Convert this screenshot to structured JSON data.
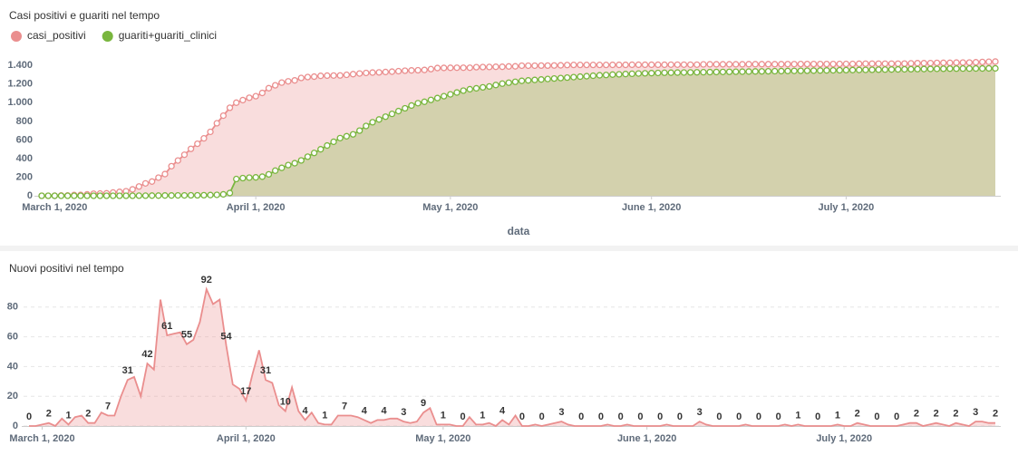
{
  "chart_data": [
    {
      "type": "area",
      "title": "Casi positivi e guariti nel tempo",
      "x_label": "data",
      "legend": "top-left",
      "markers": true,
      "grid": false,
      "x": [
        "2020-02-28",
        "2020-02-29",
        "2020-03-01",
        "2020-03-02",
        "2020-03-03",
        "2020-03-04",
        "2020-03-05",
        "2020-03-06",
        "2020-03-07",
        "2020-03-08",
        "2020-03-09",
        "2020-03-10",
        "2020-03-11",
        "2020-03-12",
        "2020-03-13",
        "2020-03-14",
        "2020-03-15",
        "2020-03-16",
        "2020-03-17",
        "2020-03-18",
        "2020-03-19",
        "2020-03-20",
        "2020-03-21",
        "2020-03-22",
        "2020-03-23",
        "2020-03-24",
        "2020-03-25",
        "2020-03-26",
        "2020-03-27",
        "2020-03-28",
        "2020-03-29",
        "2020-03-30",
        "2020-03-31",
        "2020-04-01",
        "2020-04-02",
        "2020-04-03",
        "2020-04-04",
        "2020-04-05",
        "2020-04-06",
        "2020-04-07",
        "2020-04-08",
        "2020-04-09",
        "2020-04-10",
        "2020-04-11",
        "2020-04-12",
        "2020-04-13",
        "2020-04-14",
        "2020-04-15",
        "2020-04-16",
        "2020-04-17",
        "2020-04-18",
        "2020-04-19",
        "2020-04-20",
        "2020-04-21",
        "2020-04-22",
        "2020-04-23",
        "2020-04-24",
        "2020-04-25",
        "2020-04-26",
        "2020-04-27",
        "2020-04-28",
        "2020-04-29",
        "2020-04-30",
        "2020-05-01",
        "2020-05-02",
        "2020-05-03",
        "2020-05-04",
        "2020-05-05",
        "2020-05-06",
        "2020-05-07",
        "2020-05-08",
        "2020-05-09",
        "2020-05-10",
        "2020-05-11",
        "2020-05-12",
        "2020-05-13",
        "2020-05-14",
        "2020-05-15",
        "2020-05-16",
        "2020-05-17",
        "2020-05-18",
        "2020-05-19",
        "2020-05-20",
        "2020-05-21",
        "2020-05-22",
        "2020-05-23",
        "2020-05-24",
        "2020-05-25",
        "2020-05-26",
        "2020-05-27",
        "2020-05-28",
        "2020-05-29",
        "2020-05-30",
        "2020-05-31",
        "2020-06-01",
        "2020-06-02",
        "2020-06-03",
        "2020-06-04",
        "2020-06-05",
        "2020-06-06",
        "2020-06-07",
        "2020-06-08",
        "2020-06-09",
        "2020-06-10",
        "2020-06-11",
        "2020-06-12",
        "2020-06-13",
        "2020-06-14",
        "2020-06-15",
        "2020-06-16",
        "2020-06-17",
        "2020-06-18",
        "2020-06-19",
        "2020-06-20",
        "2020-06-21",
        "2020-06-22",
        "2020-06-23",
        "2020-06-24",
        "2020-06-25",
        "2020-06-26",
        "2020-06-27",
        "2020-06-28",
        "2020-06-29",
        "2020-06-30",
        "2020-07-01",
        "2020-07-02",
        "2020-07-03",
        "2020-07-04",
        "2020-07-05",
        "2020-07-06",
        "2020-07-07",
        "2020-07-08",
        "2020-07-09",
        "2020-07-10",
        "2020-07-11",
        "2020-07-12",
        "2020-07-13",
        "2020-07-14",
        "2020-07-15",
        "2020-07-16",
        "2020-07-17",
        "2020-07-18",
        "2020-07-19",
        "2020-07-20",
        "2020-07-21",
        "2020-07-22",
        "2020-07-23",
        "2020-07-24"
      ],
      "xlim": [
        "2020-02-28",
        "2020-07-24"
      ],
      "xticks": [
        {
          "value": "2020-03-01",
          "label": "March 1, 2020"
        },
        {
          "value": "2020-04-01",
          "label": "April 1, 2020"
        },
        {
          "value": "2020-05-01",
          "label": "May 1, 2020"
        },
        {
          "value": "2020-06-01",
          "label": "June 1, 2020"
        },
        {
          "value": "2020-07-01",
          "label": "July 1, 2020"
        }
      ],
      "ylim": [
        0,
        1500
      ],
      "yticks": [
        0,
        200,
        400,
        600,
        800,
        {
          "value": 1000,
          "label": "1.000"
        },
        {
          "value": 1200,
          "label": "1.200"
        },
        {
          "value": 1400,
          "label": "1.400"
        }
      ],
      "series": [
        {
          "name": "casi_positivi",
          "color": "#ea8e8e",
          "values": [
            0,
            0,
            1,
            3,
            3,
            8,
            9,
            15,
            22,
            24,
            26,
            35,
            42,
            49,
            69,
            100,
            133,
            153,
            195,
            233,
            318,
            379,
            441,
            504,
            559,
            617,
            687,
            779,
            861,
            946,
            1000,
            1028,
            1053,
            1070,
            1105,
            1156,
            1187,
            1216,
            1230,
            1240,
            1266,
            1276,
            1280,
            1289,
            1291,
            1292,
            1293,
            1300,
            1307,
            1314,
            1320,
            1324,
            1326,
            1330,
            1334,
            1339,
            1344,
            1347,
            1349,
            1352,
            1361,
            1373,
            1374,
            1375,
            1376,
            1376,
            1376,
            1382,
            1383,
            1384,
            1386,
            1386,
            1390,
            1391,
            1398,
            1398,
            1398,
            1399,
            1399,
            1400,
            1402,
            1405,
            1406,
            1406,
            1406,
            1406,
            1406,
            1406,
            1407,
            1407,
            1407,
            1408,
            1408,
            1408,
            1408,
            1408,
            1408,
            1409,
            1409,
            1409,
            1409,
            1409,
            1412,
            1413,
            1413,
            1413,
            1413,
            1413,
            1413,
            1414,
            1414,
            1414,
            1414,
            1414,
            1414,
            1415,
            1415,
            1416,
            1416,
            1416,
            1416,
            1416,
            1416,
            1417,
            1417,
            1417,
            1419,
            1420,
            1420,
            1420,
            1420,
            1420,
            1420,
            1421,
            1423,
            1425,
            1425,
            1426,
            1428,
            1429,
            1429,
            1431,
            1432,
            1432,
            1435,
            1438,
            1440,
            1442
          ]
        },
        {
          "name": "guariti+guariti_clinici",
          "color": "#79b63e",
          "values": [
            0,
            0,
            0,
            0,
            0,
            0,
            0,
            0,
            0,
            0,
            0,
            0,
            0,
            0,
            0,
            1,
            1,
            2,
            2,
            3,
            3,
            4,
            4,
            5,
            5,
            6,
            8,
            10,
            15,
            30,
            180,
            190,
            195,
            198,
            205,
            230,
            270,
            300,
            330,
            350,
            380,
            420,
            460,
            500,
            540,
            580,
            620,
            640,
            660,
            700,
            750,
            790,
            820,
            850,
            880,
            910,
            940,
            970,
            995,
            1010,
            1030,
            1050,
            1070,
            1090,
            1110,
            1130,
            1145,
            1155,
            1165,
            1175,
            1190,
            1205,
            1215,
            1225,
            1235,
            1240,
            1245,
            1250,
            1255,
            1260,
            1265,
            1270,
            1275,
            1280,
            1285,
            1290,
            1295,
            1298,
            1302,
            1305,
            1308,
            1311,
            1314,
            1316,
            1318,
            1320,
            1322,
            1323,
            1324,
            1325,
            1326,
            1327,
            1328,
            1329,
            1330,
            1331,
            1332,
            1333,
            1334,
            1335,
            1336,
            1337,
            1338,
            1339,
            1340,
            1341,
            1342,
            1343,
            1344,
            1345,
            1346,
            1347,
            1348,
            1349,
            1350,
            1351,
            1352,
            1353,
            1354,
            1355,
            1356,
            1357,
            1358,
            1359,
            1360,
            1361,
            1362,
            1363,
            1364,
            1365,
            1366,
            1366,
            1367,
            1367,
            1368,
            1368,
            1369,
            1369
          ]
        }
      ]
    },
    {
      "type": "area",
      "title": "Nuovi positivi nel tempo",
      "data_labels": true,
      "grid": true,
      "color": "#ea8e8e",
      "x": [
        "2020-02-28",
        "2020-02-29",
        "2020-03-01",
        "2020-03-02",
        "2020-03-03",
        "2020-03-04",
        "2020-03-05",
        "2020-03-06",
        "2020-03-07",
        "2020-03-08",
        "2020-03-09",
        "2020-03-10",
        "2020-03-11",
        "2020-03-12",
        "2020-03-13",
        "2020-03-14",
        "2020-03-15",
        "2020-03-16",
        "2020-03-17",
        "2020-03-18",
        "2020-03-19",
        "2020-03-20",
        "2020-03-21",
        "2020-03-22",
        "2020-03-23",
        "2020-03-24",
        "2020-03-25",
        "2020-03-26",
        "2020-03-27",
        "2020-03-28",
        "2020-03-29",
        "2020-03-30",
        "2020-03-31",
        "2020-04-01",
        "2020-04-02",
        "2020-04-03",
        "2020-04-04",
        "2020-04-05",
        "2020-04-06",
        "2020-04-07",
        "2020-04-08",
        "2020-04-09",
        "2020-04-10",
        "2020-04-11",
        "2020-04-12",
        "2020-04-13",
        "2020-04-14",
        "2020-04-15",
        "2020-04-16",
        "2020-04-17",
        "2020-04-18",
        "2020-04-19",
        "2020-04-20",
        "2020-04-21",
        "2020-04-22",
        "2020-04-23",
        "2020-04-24",
        "2020-04-25",
        "2020-04-26",
        "2020-04-27",
        "2020-04-28",
        "2020-04-29",
        "2020-04-30",
        "2020-05-01",
        "2020-05-02",
        "2020-05-03",
        "2020-05-04",
        "2020-05-05",
        "2020-05-06",
        "2020-05-07",
        "2020-05-08",
        "2020-05-09",
        "2020-05-10",
        "2020-05-11",
        "2020-05-12",
        "2020-05-13",
        "2020-05-14",
        "2020-05-15",
        "2020-05-16",
        "2020-05-17",
        "2020-05-18",
        "2020-05-19",
        "2020-05-20",
        "2020-05-21",
        "2020-05-22",
        "2020-05-23",
        "2020-05-24",
        "2020-05-25",
        "2020-05-26",
        "2020-05-27",
        "2020-05-28",
        "2020-05-29",
        "2020-05-30",
        "2020-05-31",
        "2020-06-01",
        "2020-06-02",
        "2020-06-03",
        "2020-06-04",
        "2020-06-05",
        "2020-06-06",
        "2020-06-07",
        "2020-06-08",
        "2020-06-09",
        "2020-06-10",
        "2020-06-11",
        "2020-06-12",
        "2020-06-13",
        "2020-06-14",
        "2020-06-15",
        "2020-06-16",
        "2020-06-17",
        "2020-06-18",
        "2020-06-19",
        "2020-06-20",
        "2020-06-21",
        "2020-06-22",
        "2020-06-23",
        "2020-06-24",
        "2020-06-25",
        "2020-06-26",
        "2020-06-27",
        "2020-06-28",
        "2020-06-29",
        "2020-06-30",
        "2020-07-01",
        "2020-07-02",
        "2020-07-03",
        "2020-07-04",
        "2020-07-05",
        "2020-07-06",
        "2020-07-07",
        "2020-07-08",
        "2020-07-09",
        "2020-07-10",
        "2020-07-11",
        "2020-07-12",
        "2020-07-13",
        "2020-07-14",
        "2020-07-15",
        "2020-07-16",
        "2020-07-17",
        "2020-07-18",
        "2020-07-19",
        "2020-07-20",
        "2020-07-21",
        "2020-07-22",
        "2020-07-23",
        "2020-07-24"
      ],
      "xlim": [
        "2020-02-28",
        "2020-07-24"
      ],
      "xticks": [
        {
          "value": "2020-03-01",
          "label": "March 1, 2020"
        },
        {
          "value": "2020-04-01",
          "label": "April 1, 2020"
        },
        {
          "value": "2020-05-01",
          "label": "May 1, 2020"
        },
        {
          "value": "2020-06-01",
          "label": "June 1, 2020"
        },
        {
          "value": "2020-07-01",
          "label": "July 1, 2020"
        }
      ],
      "ylim": [
        0,
        100
      ],
      "yticks": [
        0,
        20,
        40,
        60,
        80
      ],
      "values": [
        0,
        0,
        1,
        2,
        0,
        5,
        1,
        6,
        7,
        2,
        2,
        9,
        7,
        7,
        20,
        31,
        33,
        20,
        42,
        38,
        85,
        61,
        62,
        63,
        55,
        58,
        70,
        92,
        82,
        85,
        54,
        28,
        25,
        17,
        35,
        51,
        31,
        29,
        14,
        10,
        26,
        10,
        4,
        9,
        2,
        1,
        1,
        7,
        7,
        7,
        6,
        4,
        2,
        4,
        4,
        5,
        5,
        3,
        2,
        3,
        9,
        12,
        1,
        1,
        1,
        0,
        0,
        6,
        1,
        1,
        2,
        0,
        4,
        1,
        7,
        0,
        0,
        1,
        0,
        1,
        2,
        3,
        1,
        0,
        0,
        0,
        0,
        0,
        1,
        0,
        0,
        1,
        0,
        0,
        0,
        0,
        0,
        1,
        0,
        0,
        0,
        0,
        3,
        1,
        0,
        0,
        0,
        0,
        0,
        1,
        0,
        0,
        0,
        0,
        0,
        1,
        0,
        1,
        0,
        0,
        0,
        0,
        0,
        1,
        0,
        0,
        2,
        1,
        0,
        0,
        0,
        0,
        0,
        1,
        2,
        2,
        0,
        1,
        2,
        1,
        0,
        2,
        1,
        0,
        3,
        3,
        2,
        2
      ]
    }
  ]
}
